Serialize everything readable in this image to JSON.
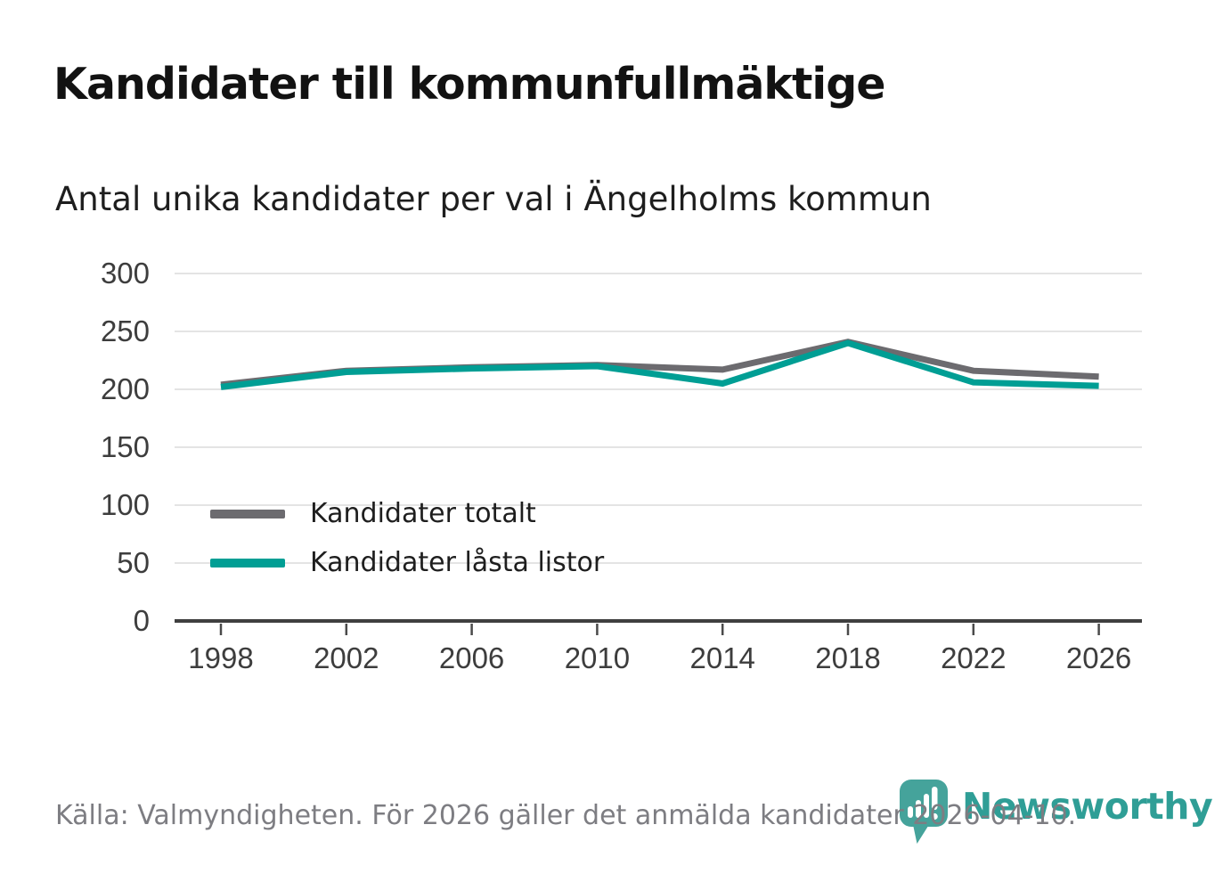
{
  "header": {
    "title": "Kandidater till kommunfullmäktige",
    "subtitle": "Antal unika kandidater per val i Ängelholms kommun"
  },
  "chart_data": {
    "type": "line",
    "title": "Kandidater till kommunfullmäktige",
    "subtitle": "Antal unika kandidater per val i Ängelholms kommun",
    "x": [
      1998,
      2002,
      2006,
      2010,
      2014,
      2018,
      2022,
      2026
    ],
    "series": [
      {
        "name": "Kandidater totalt",
        "color": "#6c6b6f",
        "values": [
          204,
          216,
          219,
          221,
          217,
          241,
          216,
          211
        ]
      },
      {
        "name": "Kandidater låsta listor",
        "color": "#009e94",
        "values": [
          202,
          215,
          218,
          220,
          205,
          240,
          206,
          203
        ]
      }
    ],
    "ylim": [
      0,
      300
    ],
    "yticks": [
      0,
      50,
      100,
      150,
      200,
      250,
      300
    ],
    "grid": true,
    "legend_position": "inside-bottom-left"
  },
  "footer": {
    "source": "Källa: Valmyndigheten. För 2026 gäller det anmälda kandidater 2026-04-10."
  },
  "branding": {
    "wordmark": "Newsworthy",
    "logo_icon": "newsworthy-pin-chart-icon",
    "accent_color": "#2f9e96",
    "pin_color": "#45a39b"
  },
  "colors": {
    "grid": "#e4e4e4",
    "axis": "#3f3f3f",
    "tick": "#4a4a4a"
  }
}
